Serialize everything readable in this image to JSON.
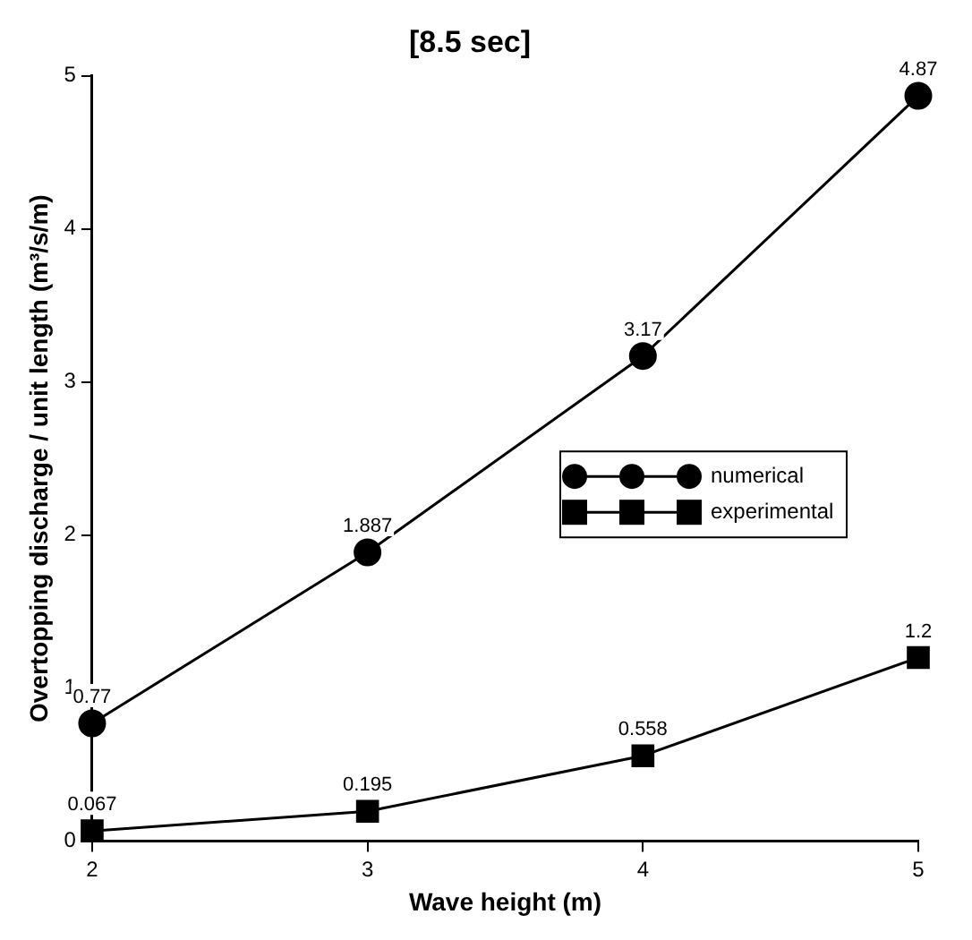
{
  "chart_data": {
    "type": "line",
    "title": "[8.5 sec]",
    "xlabel": "Wave height (m)",
    "ylabel": "Overtopping discharge / unit length (m³/s/m)",
    "x": [
      2,
      3,
      4,
      5
    ],
    "series": [
      {
        "name": "numerical",
        "color": "#000000",
        "marker": "circle",
        "values": [
          0.77,
          1.887,
          3.17,
          4.87
        ]
      },
      {
        "name": "experimental",
        "color": "#000000",
        "marker": "square",
        "values": [
          0.067,
          0.195,
          0.558,
          1.2
        ]
      }
    ],
    "xlim": [
      2,
      5
    ],
    "xticks": [
      2,
      3,
      4,
      5
    ],
    "ylim": [
      0,
      5
    ],
    "yticks": [
      0,
      1,
      2,
      3,
      4,
      5
    ],
    "grid": false,
    "legend": "right",
    "data_labels": true,
    "line_style": "solid"
  }
}
